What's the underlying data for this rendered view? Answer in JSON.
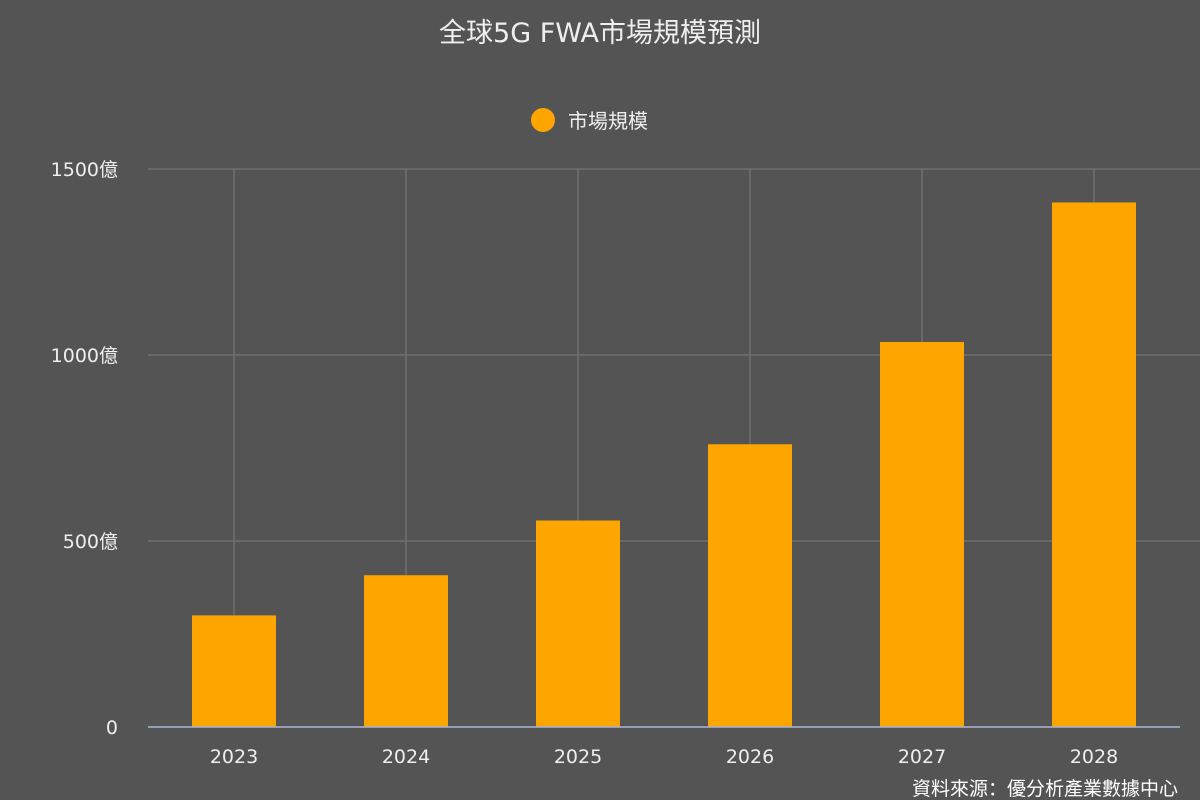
{
  "colors": {
    "background": "#545454",
    "bar": "#FFA500",
    "grid": "#6e6e6e",
    "axis": "#a9b4d6",
    "text": "#eeeeee"
  },
  "chart_data": {
    "type": "bar",
    "title": "全球5G FWA市場規模預測",
    "legend": {
      "position": "top-center",
      "marker": "circle"
    },
    "categories": [
      "2023",
      "2024",
      "2025",
      "2026",
      "2027",
      "2028"
    ],
    "series": [
      {
        "name": "市場規模",
        "values": [
          300,
          408,
          555,
          760,
          1035,
          1410
        ]
      }
    ],
    "ylim": [
      0,
      1500
    ],
    "yticks": [
      {
        "value": 0,
        "label": "0"
      },
      {
        "value": 500,
        "label": "500億"
      },
      {
        "value": 1000,
        "label": "1000億"
      },
      {
        "value": 1500,
        "label": "1500億"
      }
    ],
    "grid": true,
    "source_note": "資料來源：優分析產業數據中心"
  }
}
